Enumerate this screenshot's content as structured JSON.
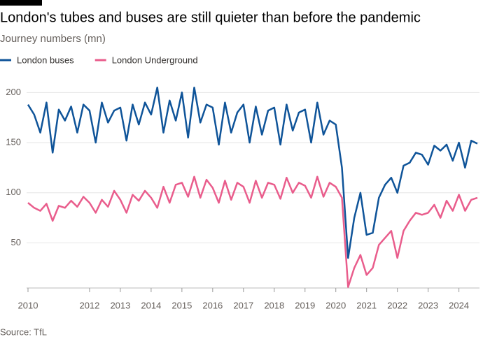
{
  "chart_data": {
    "type": "line",
    "title": "London's tubes and buses are still quieter than before the pandemic",
    "subtitle": "Journey numbers (mn)",
    "source": "Source: TfL",
    "x": [
      2010,
      2010.2,
      2010.4,
      2010.6,
      2010.8,
      2011,
      2011.2,
      2011.4,
      2011.6,
      2011.8,
      2012,
      2012.2,
      2012.4,
      2012.6,
      2012.8,
      2013,
      2013.2,
      2013.4,
      2013.6,
      2013.8,
      2014,
      2014.2,
      2014.4,
      2014.6,
      2014.8,
      2015,
      2015.2,
      2015.4,
      2015.6,
      2015.8,
      2016,
      2016.2,
      2016.4,
      2016.6,
      2016.8,
      2017,
      2017.2,
      2017.4,
      2017.6,
      2017.8,
      2018,
      2018.2,
      2018.4,
      2018.6,
      2018.8,
      2019,
      2019.2,
      2019.4,
      2019.6,
      2019.8,
      2020,
      2020.2,
      2020.4,
      2020.6,
      2020.8,
      2021,
      2021.2,
      2021.4,
      2021.6,
      2021.8,
      2022,
      2022.2,
      2022.4,
      2022.6,
      2022.8,
      2023,
      2023.2,
      2023.4,
      2023.6,
      2023.8,
      2024,
      2024.2,
      2024.4,
      2024.6
    ],
    "series": [
      {
        "name": "London buses",
        "color": "#0f5499",
        "values": [
          188,
          178,
          160,
          190,
          140,
          183,
          172,
          186,
          160,
          188,
          182,
          150,
          190,
          170,
          182,
          185,
          152,
          188,
          168,
          190,
          178,
          205,
          160,
          192,
          172,
          200,
          155,
          205,
          170,
          188,
          185,
          148,
          190,
          160,
          180,
          188,
          150,
          186,
          158,
          182,
          185,
          148,
          188,
          162,
          180,
          183,
          150,
          190,
          158,
          172,
          168,
          125,
          35,
          75,
          100,
          58,
          60,
          95,
          108,
          115,
          100,
          127,
          130,
          140,
          138,
          128,
          147,
          142,
          148,
          132,
          150,
          125,
          152,
          149
        ]
      },
      {
        "name": "London Underground",
        "color": "#e95d8c",
        "values": [
          90,
          85,
          82,
          89,
          72,
          87,
          85,
          92,
          86,
          96,
          90,
          80,
          93,
          86,
          102,
          93,
          80,
          98,
          92,
          102,
          95,
          85,
          106,
          90,
          108,
          110,
          96,
          116,
          95,
          113,
          105,
          90,
          112,
          93,
          110,
          106,
          90,
          112,
          95,
          110,
          108,
          94,
          115,
          100,
          110,
          107,
          95,
          116,
          96,
          110,
          106,
          95,
          6,
          25,
          38,
          18,
          25,
          48,
          55,
          62,
          35,
          62,
          72,
          80,
          78,
          80,
          88,
          75,
          92,
          82,
          98,
          82,
          93,
          95
        ]
      }
    ],
    "xlim": [
      2010,
      2024.6
    ],
    "xticks": [
      2010,
      2012,
      2013,
      2014,
      2015,
      2016,
      2017,
      2018,
      2019,
      2020,
      2021,
      2022,
      2023,
      2024
    ],
    "ylim": [
      5,
      210
    ],
    "yticks": [
      50,
      100,
      150,
      200
    ],
    "grid": true
  }
}
